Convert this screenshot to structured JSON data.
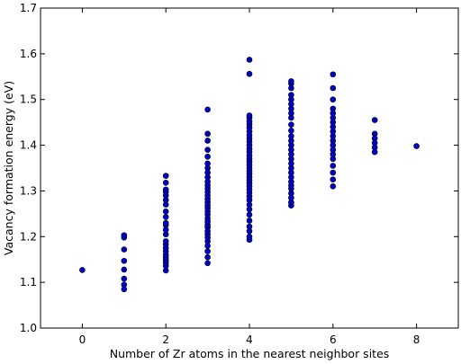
{
  "chart_data": {
    "type": "scatter",
    "title": "",
    "xlabel": "Number of Zr atoms in the nearest neighbor sites",
    "ylabel": "Vacancy formation energy (eV)",
    "xlim": [
      -1,
      9
    ],
    "ylim": [
      1.0,
      1.7
    ],
    "xticks": [
      "0",
      "2",
      "4",
      "6",
      "8"
    ],
    "yticks": [
      "1.0",
      "1.1",
      "1.2",
      "1.3",
      "1.4",
      "1.5",
      "1.6",
      "1.7"
    ],
    "xtick_values": [
      0,
      2,
      4,
      6,
      8
    ],
    "ytick_values": [
      1.0,
      1.1,
      1.2,
      1.3,
      1.4,
      1.5,
      1.6,
      1.7
    ],
    "grid": false,
    "marker_color": "#0000cc",
    "series": [
      {
        "points": [
          [
            0,
            1.127
          ],
          [
            1,
            1.085
          ],
          [
            1,
            1.095
          ],
          [
            1,
            1.108
          ],
          [
            1,
            1.128
          ],
          [
            1,
            1.147
          ],
          [
            1,
            1.172
          ],
          [
            1,
            1.198
          ],
          [
            1,
            1.203
          ],
          [
            2,
            1.126
          ],
          [
            2,
            1.136
          ],
          [
            2,
            1.143
          ],
          [
            2,
            1.148
          ],
          [
            2,
            1.154
          ],
          [
            2,
            1.16
          ],
          [
            2,
            1.168
          ],
          [
            2,
            1.175
          ],
          [
            2,
            1.183
          ],
          [
            2,
            1.19
          ],
          [
            2,
            1.205
          ],
          [
            2,
            1.215
          ],
          [
            2,
            1.225
          ],
          [
            2,
            1.23
          ],
          [
            2,
            1.243
          ],
          [
            2,
            1.255
          ],
          [
            2,
            1.27
          ],
          [
            2,
            1.28
          ],
          [
            2,
            1.29
          ],
          [
            2,
            1.298
          ],
          [
            2,
            1.303
          ],
          [
            2,
            1.318
          ],
          [
            2,
            1.333
          ],
          [
            3,
            1.142
          ],
          [
            3,
            1.155
          ],
          [
            3,
            1.168
          ],
          [
            3,
            1.18
          ],
          [
            3,
            1.19
          ],
          [
            3,
            1.198
          ],
          [
            3,
            1.205
          ],
          [
            3,
            1.212
          ],
          [
            3,
            1.22
          ],
          [
            3,
            1.226
          ],
          [
            3,
            1.233
          ],
          [
            3,
            1.24
          ],
          [
            3,
            1.248
          ],
          [
            3,
            1.255
          ],
          [
            3,
            1.262
          ],
          [
            3,
            1.268
          ],
          [
            3,
            1.275
          ],
          [
            3,
            1.282
          ],
          [
            3,
            1.29
          ],
          [
            3,
            1.298
          ],
          [
            3,
            1.305
          ],
          [
            3,
            1.312
          ],
          [
            3,
            1.32
          ],
          [
            3,
            1.33
          ],
          [
            3,
            1.34
          ],
          [
            3,
            1.35
          ],
          [
            3,
            1.36
          ],
          [
            3,
            1.375
          ],
          [
            3,
            1.39
          ],
          [
            3,
            1.41
          ],
          [
            3,
            1.425
          ],
          [
            3,
            1.478
          ],
          [
            4,
            1.193
          ],
          [
            4,
            1.2
          ],
          [
            4,
            1.212
          ],
          [
            4,
            1.222
          ],
          [
            4,
            1.235
          ],
          [
            4,
            1.248
          ],
          [
            4,
            1.26
          ],
          [
            4,
            1.27
          ],
          [
            4,
            1.28
          ],
          [
            4,
            1.288
          ],
          [
            4,
            1.296
          ],
          [
            4,
            1.303
          ],
          [
            4,
            1.31
          ],
          [
            4,
            1.317
          ],
          [
            4,
            1.323
          ],
          [
            4,
            1.33
          ],
          [
            4,
            1.337
          ],
          [
            4,
            1.343
          ],
          [
            4,
            1.35
          ],
          [
            4,
            1.357
          ],
          [
            4,
            1.364
          ],
          [
            4,
            1.37
          ],
          [
            4,
            1.377
          ],
          [
            4,
            1.385
          ],
          [
            4,
            1.392
          ],
          [
            4,
            1.4
          ],
          [
            4,
            1.408
          ],
          [
            4,
            1.415
          ],
          [
            4,
            1.422
          ],
          [
            4,
            1.43
          ],
          [
            4,
            1.438
          ],
          [
            4,
            1.445
          ],
          [
            4,
            1.452
          ],
          [
            4,
            1.46
          ],
          [
            4,
            1.465
          ],
          [
            4,
            1.556
          ],
          [
            4,
            1.587
          ],
          [
            5,
            1.268
          ],
          [
            5,
            1.275
          ],
          [
            5,
            1.285
          ],
          [
            5,
            1.295
          ],
          [
            5,
            1.305
          ],
          [
            5,
            1.312
          ],
          [
            5,
            1.32
          ],
          [
            5,
            1.33
          ],
          [
            5,
            1.34
          ],
          [
            5,
            1.35
          ],
          [
            5,
            1.36
          ],
          [
            5,
            1.37
          ],
          [
            5,
            1.38
          ],
          [
            5,
            1.39
          ],
          [
            5,
            1.4
          ],
          [
            5,
            1.41
          ],
          [
            5,
            1.42
          ],
          [
            5,
            1.432
          ],
          [
            5,
            1.445
          ],
          [
            5,
            1.46
          ],
          [
            5,
            1.47
          ],
          [
            5,
            1.48
          ],
          [
            5,
            1.49
          ],
          [
            5,
            1.5
          ],
          [
            5,
            1.51
          ],
          [
            5,
            1.525
          ],
          [
            5,
            1.535
          ],
          [
            5,
            1.54
          ],
          [
            6,
            1.31
          ],
          [
            6,
            1.325
          ],
          [
            6,
            1.34
          ],
          [
            6,
            1.355
          ],
          [
            6,
            1.37
          ],
          [
            6,
            1.38
          ],
          [
            6,
            1.39
          ],
          [
            6,
            1.4
          ],
          [
            6,
            1.41
          ],
          [
            6,
            1.42
          ],
          [
            6,
            1.43
          ],
          [
            6,
            1.44
          ],
          [
            6,
            1.45
          ],
          [
            6,
            1.46
          ],
          [
            6,
            1.47
          ],
          [
            6,
            1.48
          ],
          [
            6,
            1.5
          ],
          [
            6,
            1.525
          ],
          [
            6,
            1.555
          ],
          [
            7,
            1.385
          ],
          [
            7,
            1.395
          ],
          [
            7,
            1.405
          ],
          [
            7,
            1.415
          ],
          [
            7,
            1.425
          ],
          [
            7,
            1.455
          ],
          [
            8,
            1.398
          ]
        ]
      }
    ]
  }
}
